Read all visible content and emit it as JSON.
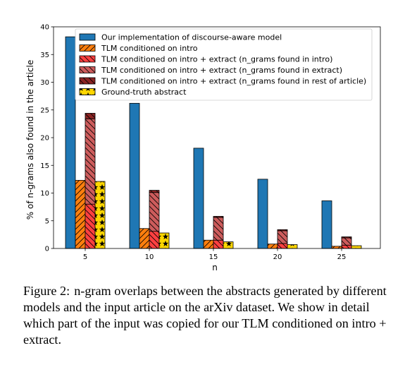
{
  "chart_data": {
    "type": "bar",
    "title": "",
    "xlabel": "n",
    "ylabel": "% of n-grams also found in the article",
    "categories": [
      "5",
      "10",
      "15",
      "20",
      "25"
    ],
    "yticks": [
      0,
      5,
      10,
      15,
      20,
      25,
      30,
      35,
      40
    ],
    "ylim": [
      0,
      40
    ],
    "legend_position": "upper-right",
    "grid": false,
    "series": [
      {
        "name": "Our implementation of discourse-aware model",
        "color": "#1f77b4",
        "hatch": "none",
        "values": [
          38.2,
          26.2,
          18.1,
          12.5,
          8.6
        ]
      },
      {
        "name": "TLM conditioned on intro",
        "color": "#ff7f0e",
        "hatch": "diagonal",
        "values": [
          12.3,
          3.6,
          1.5,
          0.8,
          0.4
        ]
      },
      {
        "name": "TLM conditioned on intro + extract",
        "stacked": true,
        "values": [
          24.4,
          10.5,
          5.8,
          3.4,
          2.1
        ],
        "components": [
          {
            "name": "TLM conditioned on intro + extract (n_grams found in intro)",
            "color": "#ff4040",
            "hatch": "backslash",
            "values": [
              8.0,
              3.1,
              1.5,
              0.9,
              0.6
            ]
          },
          {
            "name": "TLM conditioned on intro + extract (n_grams found in extract)",
            "color": "#cd5c5c",
            "hatch": "backslash",
            "values": [
              15.4,
              7.0,
              4.1,
              2.3,
              1.3
            ]
          },
          {
            "name": "TLM conditioned on intro + extract (n_grams found in rest of article)",
            "color": "#8b2323",
            "hatch": "backslash",
            "values": [
              1.0,
              0.4,
              0.2,
              0.2,
              0.2
            ]
          }
        ]
      },
      {
        "name": "Ground-truth abstract",
        "color": "#ffd700",
        "hatch": "stars",
        "values": [
          12.1,
          2.8,
          1.2,
          0.7,
          0.5
        ]
      }
    ]
  },
  "caption": {
    "label": "Figure 2:",
    "text": "n-gram overlaps between the abstracts generated by different models and the input article on the arXiv dataset. We show in detail which part of the input was copied for our TLM conditioned on intro + extract."
  }
}
